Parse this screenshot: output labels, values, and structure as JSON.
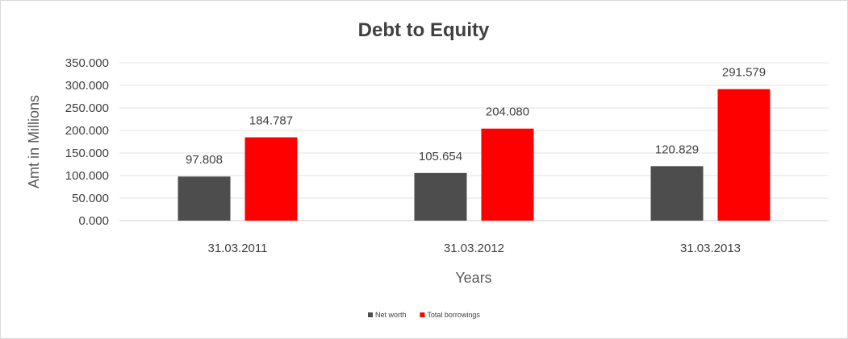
{
  "chart_data": {
    "type": "bar",
    "title": "Debt to Equity",
    "xlabel": "Years",
    "ylabel": "Amt in Millions",
    "categories": [
      "31.03.2011",
      "31.03.2012",
      "31.03.2013"
    ],
    "series": [
      {
        "name": "Net worth",
        "color": "#4d4d4d",
        "values": [
          97.808,
          105.654,
          120.829
        ],
        "labels": [
          "97.808",
          "105.654",
          "120.829"
        ]
      },
      {
        "name": "Total borrowings",
        "color": "#ff0000",
        "values": [
          184.787,
          204.08,
          291.579
        ],
        "labels": [
          "184.787",
          "204.080",
          "291.579"
        ]
      }
    ],
    "ylim": [
      0,
      350
    ],
    "yticks": [
      "0.000",
      "50.000",
      "100.000",
      "150.000",
      "200.000",
      "250.000",
      "300.000",
      "350.000"
    ],
    "grid": true,
    "legend_position": "bottom"
  }
}
